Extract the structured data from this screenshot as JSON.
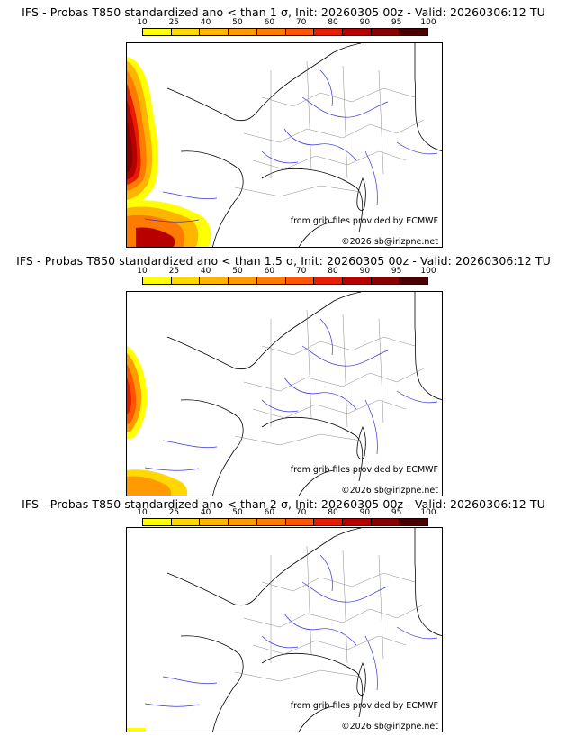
{
  "legend": {
    "ticks": [
      "10",
      "25",
      "40",
      "50",
      "60",
      "70",
      "80",
      "90",
      "95",
      "100"
    ],
    "colors": [
      "#ffff00",
      "#ffd800",
      "#ffb400",
      "#ff9a00",
      "#ff7a00",
      "#ff5500",
      "#e81c00",
      "#b80000",
      "#8a0000",
      "#4a0000"
    ]
  },
  "panels": [
    {
      "title": "IFS - Probas T850  standardized ano < than 1 σ, Init: 20260305 00z - Valid: 20260306:12 TU",
      "threshold": "1"
    },
    {
      "title": "IFS - Probas T850  standardized ano < than 1.5 σ, Init: 20260305 00z - Valid: 20260306:12 TU",
      "threshold": "1.5"
    },
    {
      "title": "IFS - Probas T850  standardized ano < than 2 σ, Init: 20260305 00z - Valid: 20260306:12 TU",
      "threshold": "2"
    }
  ],
  "credits": {
    "source": "from grib files provided by ECMWF",
    "copyright": "©2026 sb@irizpne.net"
  }
}
